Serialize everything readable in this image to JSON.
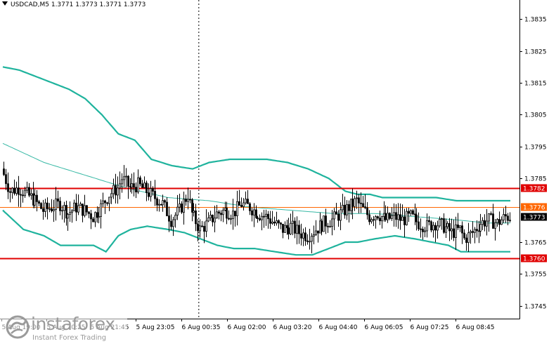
{
  "header": {
    "symbol": "USDCAD,M5",
    "ohlc": "1.3771 1.3773 1.3771 1.3773"
  },
  "colors": {
    "band": "#1fb39d",
    "ma": "#36b8a4",
    "level_line": "#e00000",
    "mid_line": "#ff6600",
    "candle": "#000000",
    "grid_vline": "#000000",
    "current_price_bg": "#000000"
  },
  "logo": {
    "name": "instaforex",
    "tagline": "Instant Forex Trading",
    "icon": "instaforex-globe-icon"
  },
  "chart_data": {
    "type": "candlestick",
    "symbol": "USDCAD",
    "timeframe": "M5",
    "ylim": [
      1.3741,
      1.3841
    ],
    "y_ticks": [
      {
        "value": 1.3835,
        "label": "1.3835"
      },
      {
        "value": 1.3825,
        "label": "1.3825"
      },
      {
        "value": 1.3815,
        "label": "1.3815"
      },
      {
        "value": 1.3805,
        "label": "1.3805"
      },
      {
        "value": 1.3795,
        "label": "1.3795"
      },
      {
        "value": 1.3785,
        "label": "1.3785"
      },
      {
        "value": 1.3765,
        "label": "1.3765"
      },
      {
        "value": 1.3755,
        "label": "1.3755"
      },
      {
        "value": 1.3745,
        "label": "1.3745"
      }
    ],
    "x_ticks": [
      "5 Aug 19:00",
      "5 Aug 20:25",
      "5 Aug 21:45",
      "5 Aug 23:05",
      "6 Aug 00:35",
      "6 Aug 02:00",
      "6 Aug 03:20",
      "6 Aug 04:40",
      "6 Aug 06:05",
      "6 Aug 07:25",
      "6 Aug 08:45"
    ],
    "levels": [
      {
        "value": 1.3782,
        "label": "1.3782",
        "style": "red"
      },
      {
        "value": 1.3776,
        "label": "1.3776",
        "style": "orange"
      },
      {
        "value": 1.376,
        "label": "1.3760",
        "style": "red"
      }
    ],
    "current_price": {
      "value": 1.3773,
      "label": "1.3773"
    },
    "day_separator_at": "6 Aug 00:00",
    "close_path": [
      [
        0,
        1.3788
      ],
      [
        4,
        1.3781
      ],
      [
        8,
        1.3782
      ],
      [
        12,
        1.378
      ],
      [
        16,
        1.3778
      ],
      [
        20,
        1.3775
      ],
      [
        24,
        1.3776
      ],
      [
        28,
        1.3777
      ],
      [
        32,
        1.3774
      ],
      [
        36,
        1.3776
      ],
      [
        40,
        1.3775
      ],
      [
        44,
        1.3773
      ],
      [
        48,
        1.3776
      ],
      [
        52,
        1.378
      ],
      [
        56,
        1.3782
      ],
      [
        58,
        1.3785
      ],
      [
        62,
        1.3782
      ],
      [
        66,
        1.3783
      ],
      [
        70,
        1.3781
      ],
      [
        74,
        1.3779
      ],
      [
        78,
        1.3777
      ],
      [
        82,
        1.3772
      ],
      [
        86,
        1.3775
      ],
      [
        90,
        1.378
      ],
      [
        92,
        1.3774
      ],
      [
        96,
        1.3769
      ],
      [
        100,
        1.3771
      ],
      [
        104,
        1.3774
      ],
      [
        108,
        1.3775
      ],
      [
        112,
        1.3774
      ],
      [
        116,
        1.3777
      ],
      [
        120,
        1.3776
      ],
      [
        124,
        1.3774
      ],
      [
        128,
        1.3773
      ],
      [
        132,
        1.3771
      ],
      [
        136,
        1.3769
      ],
      [
        140,
        1.377
      ],
      [
        144,
        1.3768
      ],
      [
        148,
        1.3767
      ],
      [
        152,
        1.3769
      ],
      [
        156,
        1.3771
      ],
      [
        160,
        1.3772
      ],
      [
        164,
        1.3774
      ],
      [
        168,
        1.3776
      ],
      [
        172,
        1.3778
      ],
      [
        174,
        1.3776
      ],
      [
        178,
        1.3773
      ],
      [
        182,
        1.3774
      ],
      [
        186,
        1.3772
      ],
      [
        190,
        1.3773
      ],
      [
        194,
        1.3772
      ],
      [
        198,
        1.3773
      ],
      [
        202,
        1.3771
      ],
      [
        206,
        1.377
      ],
      [
        210,
        1.3771
      ],
      [
        214,
        1.377
      ],
      [
        218,
        1.3768
      ],
      [
        222,
        1.3769
      ],
      [
        224,
        1.3766
      ],
      [
        228,
        1.3768
      ],
      [
        232,
        1.3771
      ],
      [
        236,
        1.3772
      ],
      [
        240,
        1.3771
      ],
      [
        244,
        1.3773
      ]
    ],
    "moving_average": [
      [
        0,
        1.3796
      ],
      [
        20,
        1.379
      ],
      [
        40,
        1.3786
      ],
      [
        60,
        1.3782
      ],
      [
        80,
        1.3779
      ],
      [
        100,
        1.3778
      ],
      [
        120,
        1.3776
      ],
      [
        140,
        1.3775
      ],
      [
        160,
        1.3774
      ],
      [
        180,
        1.3774
      ],
      [
        200,
        1.3773
      ],
      [
        220,
        1.3772
      ],
      [
        235,
        1.3771
      ],
      [
        246,
        1.3771
      ]
    ],
    "upper_band": [
      [
        0,
        1.382
      ],
      [
        8,
        1.3819
      ],
      [
        20,
        1.3816
      ],
      [
        32,
        1.3813
      ],
      [
        40,
        1.381
      ],
      [
        48,
        1.3805
      ],
      [
        56,
        1.3799
      ],
      [
        64,
        1.3797
      ],
      [
        72,
        1.3791
      ],
      [
        82,
        1.3789
      ],
      [
        92,
        1.3788
      ],
      [
        100,
        1.379
      ],
      [
        110,
        1.3791
      ],
      [
        128,
        1.3791
      ],
      [
        138,
        1.379
      ],
      [
        148,
        1.3788
      ],
      [
        158,
        1.3785
      ],
      [
        166,
        1.3781
      ],
      [
        172,
        1.378
      ],
      [
        178,
        1.378
      ],
      [
        184,
        1.3779
      ],
      [
        200,
        1.3779
      ],
      [
        210,
        1.3779
      ],
      [
        220,
        1.3778
      ],
      [
        230,
        1.3778
      ],
      [
        246,
        1.3778
      ]
    ],
    "lower_band": [
      [
        0,
        1.3775
      ],
      [
        10,
        1.3769
      ],
      [
        20,
        1.3767
      ],
      [
        28,
        1.3764
      ],
      [
        36,
        1.3764
      ],
      [
        44,
        1.3764
      ],
      [
        50,
        1.3762
      ],
      [
        56,
        1.3767
      ],
      [
        62,
        1.3769
      ],
      [
        70,
        1.377
      ],
      [
        80,
        1.3769
      ],
      [
        88,
        1.3768
      ],
      [
        96,
        1.3766
      ],
      [
        104,
        1.3764
      ],
      [
        112,
        1.3763
      ],
      [
        122,
        1.3763
      ],
      [
        132,
        1.3762
      ],
      [
        142,
        1.3761
      ],
      [
        150,
        1.3761
      ],
      [
        158,
        1.3763
      ],
      [
        166,
        1.3765
      ],
      [
        172,
        1.3765
      ],
      [
        180,
        1.3766
      ],
      [
        190,
        1.3767
      ],
      [
        200,
        1.3766
      ],
      [
        208,
        1.3765
      ],
      [
        216,
        1.3764
      ],
      [
        222,
        1.3762
      ],
      [
        228,
        1.3762
      ],
      [
        246,
        1.3762
      ]
    ]
  }
}
